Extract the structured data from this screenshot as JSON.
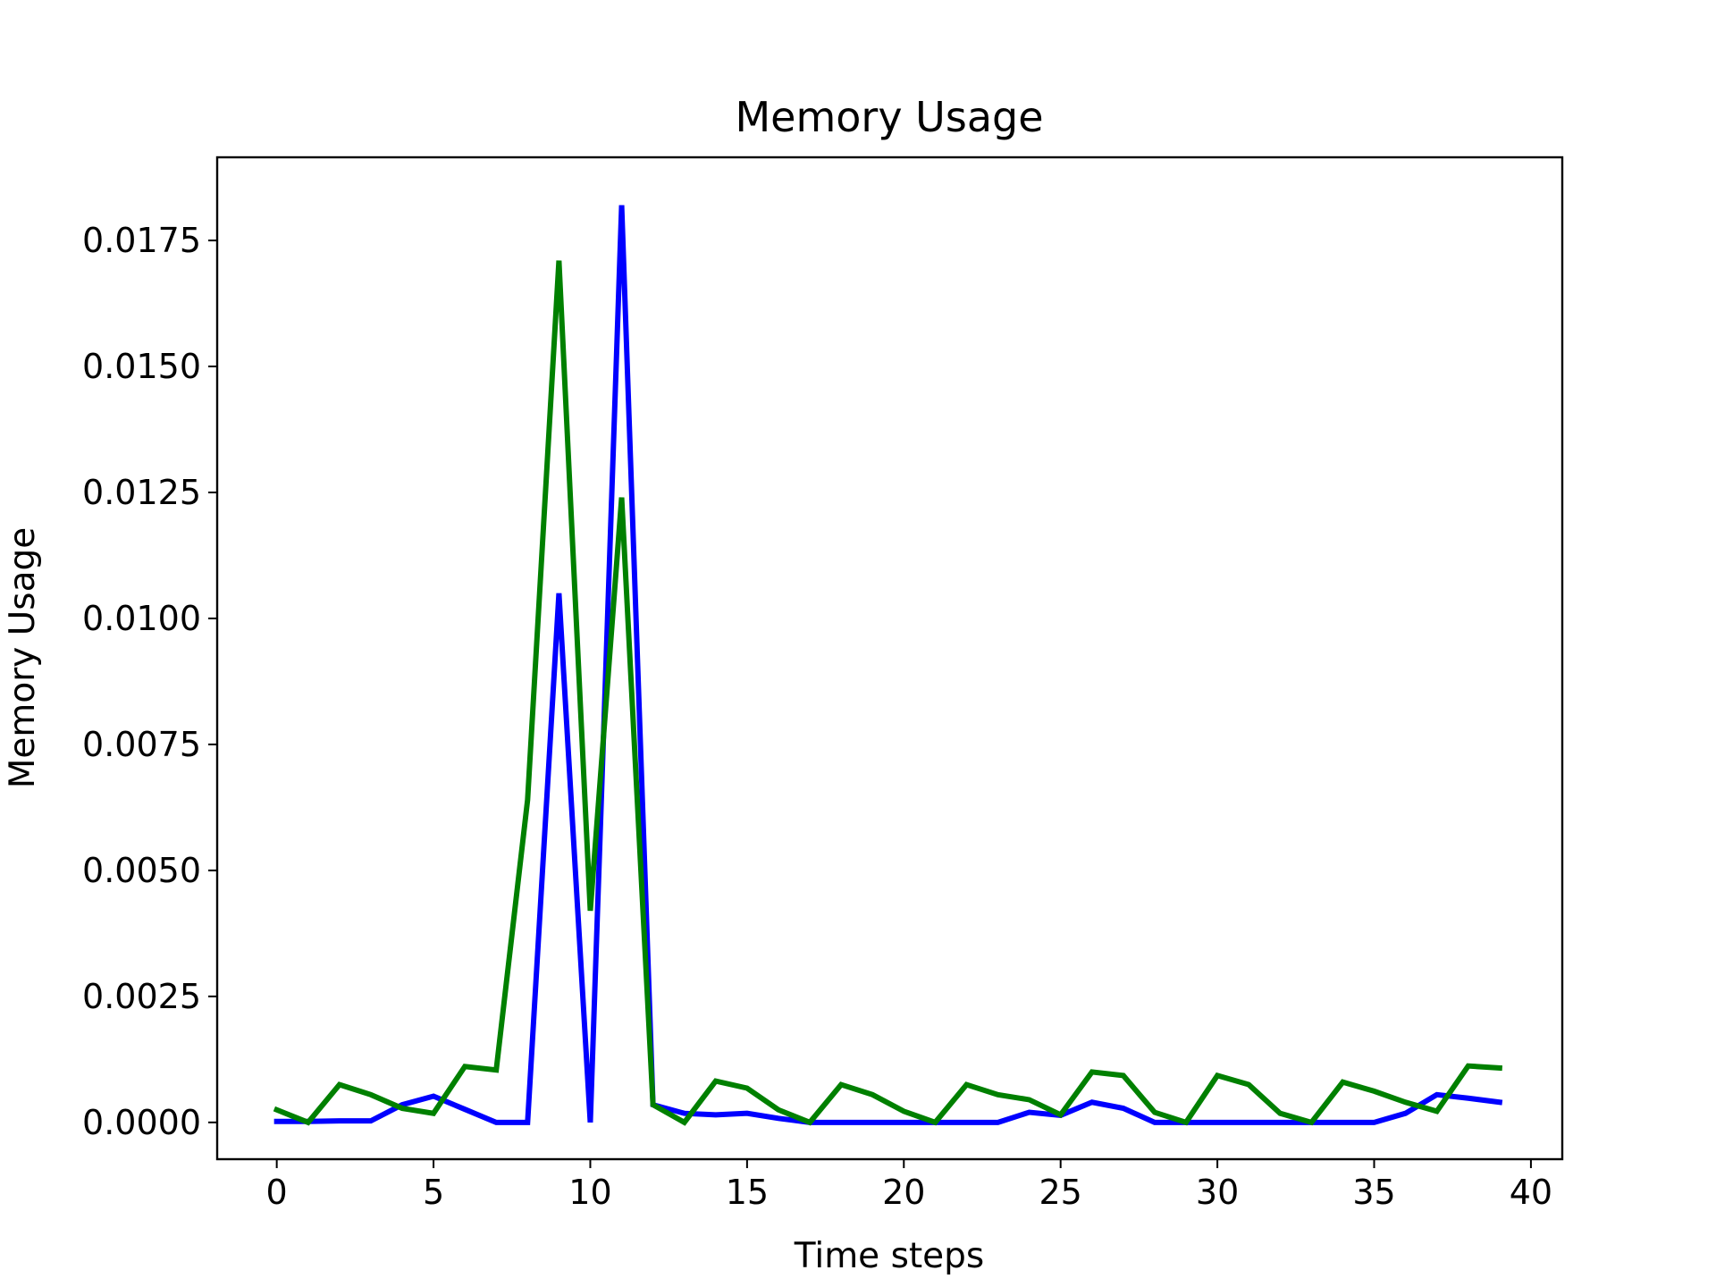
{
  "chart_data": {
    "type": "line",
    "title": "Memory Usage",
    "xlabel": "Time steps",
    "ylabel": "Memory Usage",
    "xlim": [
      -1.9,
      41.0
    ],
    "ylim": [
      -0.00073,
      0.01915
    ],
    "xticks": [
      0,
      5,
      10,
      15,
      20,
      25,
      30,
      35,
      40
    ],
    "xtick_labels": [
      "0",
      "5",
      "10",
      "15",
      "20",
      "25",
      "30",
      "35",
      "40"
    ],
    "yticks": [
      0.0,
      0.0025,
      0.005,
      0.0075,
      0.01,
      0.0125,
      0.015,
      0.0175
    ],
    "ytick_labels": [
      "0.0000",
      "0.0025",
      "0.0050",
      "0.0075",
      "0.0100",
      "0.0125",
      "0.0150",
      "0.0175"
    ],
    "grid": false,
    "x": [
      0,
      1,
      2,
      3,
      4,
      5,
      6,
      7,
      8,
      9,
      10,
      11,
      12,
      13,
      14,
      15,
      16,
      17,
      18,
      19,
      20,
      21,
      22,
      23,
      24,
      25,
      26,
      27,
      28,
      29,
      30,
      31,
      32,
      33,
      34,
      35,
      36,
      37,
      38,
      39
    ],
    "series": [
      {
        "color": "#0000ff",
        "values": [
          2e-05,
          2e-05,
          3e-05,
          3e-05,
          0.00035,
          0.00052,
          0.00026,
          0.0,
          0.0,
          0.0105,
          0.0,
          0.0182,
          0.00035,
          0.00018,
          0.00015,
          0.00018,
          8e-05,
          0.0,
          0.0,
          0.0,
          0.0,
          0.0,
          0.0,
          0.0,
          0.0002,
          0.00014,
          0.0004,
          0.00028,
          0.0,
          0.0,
          0.0,
          0.0,
          0.0,
          0.0,
          0.0,
          0.0,
          0.00018,
          0.00055,
          0.00048,
          0.0004
        ]
      },
      {
        "color": "#008000",
        "values": [
          0.00025,
          0.0,
          0.00075,
          0.00055,
          0.00028,
          0.00018,
          0.00111,
          0.00104,
          0.0064,
          0.0171,
          0.0042,
          0.0124,
          0.00035,
          0.0,
          0.00082,
          0.00068,
          0.00025,
          0.0,
          0.00075,
          0.00055,
          0.00022,
          0.0,
          0.00075,
          0.00055,
          0.00045,
          0.00015,
          0.001,
          0.00093,
          0.0002,
          0.0,
          0.00093,
          0.00075,
          0.00018,
          0.0,
          0.0008,
          0.00062,
          0.0004,
          0.00022,
          0.00112,
          0.00108
        ]
      }
    ]
  }
}
